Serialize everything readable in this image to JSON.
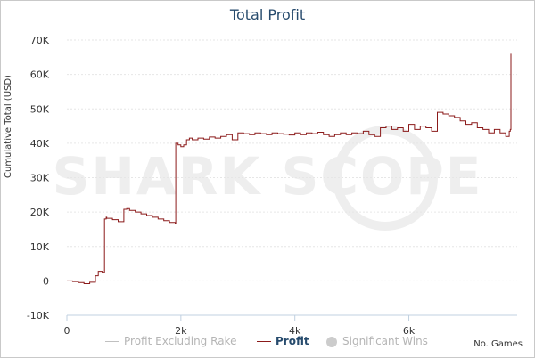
{
  "chart_data": {
    "type": "line",
    "title": "Total Profit",
    "ylabel": "Cumulative Total (USD)",
    "xlabel": "No. Games",
    "xlim": [
      0,
      7900
    ],
    "ylim": [
      -10000,
      70000
    ],
    "x_ticks": [
      {
        "value": 0,
        "label": "0"
      },
      {
        "value": 2000,
        "label": "2k"
      },
      {
        "value": 4000,
        "label": "4k"
      },
      {
        "value": 6000,
        "label": "6k"
      }
    ],
    "y_ticks": [
      {
        "value": -10000,
        "label": "-10K"
      },
      {
        "value": 0,
        "label": "0"
      },
      {
        "value": 10000,
        "label": "10K"
      },
      {
        "value": 20000,
        "label": "20K"
      },
      {
        "value": 30000,
        "label": "30K"
      },
      {
        "value": 40000,
        "label": "40K"
      },
      {
        "value": 50000,
        "label": "50K"
      },
      {
        "value": 60000,
        "label": "60K"
      },
      {
        "value": 70000,
        "label": "70K"
      }
    ],
    "grid": true,
    "legend_position": "bottom",
    "watermark": "SHARK SCOPE",
    "series": [
      {
        "name": "Profit",
        "color": "#8b1a1a",
        "x": [
          0,
          100,
          200,
          300,
          400,
          500,
          550,
          620,
          660,
          690,
          700,
          800,
          900,
          1000,
          1050,
          1100,
          1200,
          1300,
          1400,
          1500,
          1600,
          1700,
          1800,
          1900,
          1910,
          1950,
          2000,
          2050,
          2100,
          2150,
          2200,
          2300,
          2400,
          2500,
          2600,
          2700,
          2800,
          2900,
          3000,
          3100,
          3200,
          3300,
          3400,
          3500,
          3600,
          3700,
          3800,
          3900,
          4000,
          4100,
          4200,
          4300,
          4400,
          4500,
          4600,
          4700,
          4800,
          4900,
          5000,
          5100,
          5200,
          5300,
          5400,
          5500,
          5600,
          5700,
          5800,
          5900,
          6000,
          6100,
          6200,
          6300,
          6400,
          6450,
          6500,
          6600,
          6700,
          6800,
          6900,
          7000,
          7100,
          7200,
          7300,
          7400,
          7500,
          7600,
          7700,
          7760,
          7780,
          7790
        ],
        "values": [
          0,
          -200,
          -500,
          -800,
          -400,
          1500,
          2800,
          2500,
          18000,
          18500,
          18200,
          17800,
          17200,
          20800,
          21000,
          20500,
          20000,
          19500,
          19000,
          18500,
          18000,
          17500,
          17000,
          16700,
          40000,
          39500,
          39000,
          39500,
          41000,
          41500,
          41000,
          41500,
          41200,
          41800,
          41500,
          42000,
          42500,
          41000,
          43000,
          42800,
          42500,
          43000,
          42800,
          42500,
          43000,
          42800,
          42600,
          42400,
          43000,
          42500,
          43000,
          42800,
          43200,
          42500,
          42000,
          42500,
          43000,
          42500,
          43000,
          42800,
          43500,
          42500,
          42000,
          44500,
          45000,
          44000,
          44500,
          43500,
          45500,
          44000,
          45000,
          44500,
          43500,
          43500,
          49000,
          48500,
          48000,
          47500,
          46500,
          45500,
          46000,
          44500,
          44000,
          43000,
          44000,
          43000,
          42000,
          43500,
          44000,
          66000
        ]
      }
    ]
  },
  "legend": {
    "items": [
      {
        "label": "Profit Excluding Rake",
        "color": "#c0c0c0",
        "text_color": "#b5b5b5",
        "weight": "normal",
        "symbol": "line"
      },
      {
        "label": "Profit",
        "color": "#8b1a1a",
        "text_color": "#274b6d",
        "weight": "bold",
        "symbol": "line"
      },
      {
        "label": "Significant Wins",
        "color": "#cccccc",
        "text_color": "#b5b5b5",
        "weight": "normal",
        "symbol": "dot"
      }
    ]
  },
  "colors": {
    "grid": "#e6e6e6",
    "axis": "#c0d0e0",
    "tick_label": "#333333",
    "watermark": "#eeeeee"
  }
}
